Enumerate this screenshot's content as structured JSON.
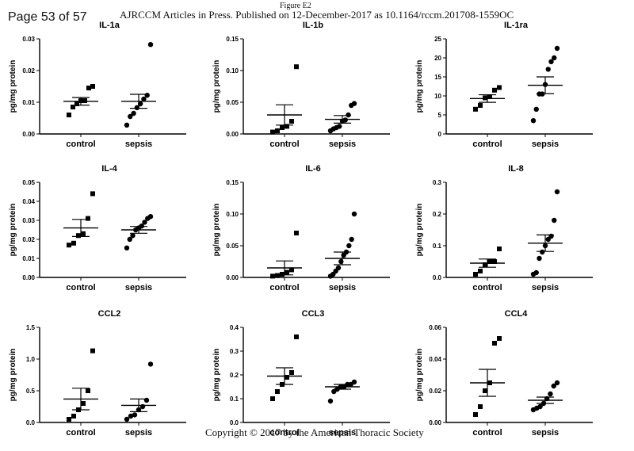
{
  "header": {
    "page": "Page 53 of 57",
    "journal": "AJRCCM Articles in Press. Published on 12-December-2017 as 10.1164/rccm.201708-1559OC",
    "figure": "Figure E2"
  },
  "footer": {
    "copyright": "Copyright © 2017 by the American Thoracic Society"
  },
  "chart_data": [
    {
      "type": "scatter",
      "title": "IL-1a",
      "ylabel": "pg/mg protein",
      "categories": [
        "control",
        "sepsis"
      ],
      "ylim": [
        0,
        0.03
      ],
      "yticks": [
        0,
        0.01,
        0.02,
        0.03
      ],
      "tick_labels": [
        "0.00",
        "0.01",
        "0.02",
        "0.03"
      ],
      "series": [
        {
          "values": [
            0.006,
            0.0085,
            0.0095,
            0.0105,
            0.0105,
            0.0145,
            0.015
          ],
          "mean": 0.0103,
          "sem": 0.0012
        },
        {
          "values": [
            0.0028,
            0.0055,
            0.0065,
            0.0083,
            0.0095,
            0.011,
            0.0122,
            0.0282
          ],
          "mean": 0.0103,
          "sem": 0.0022
        }
      ]
    },
    {
      "type": "scatter",
      "title": "IL-1b",
      "ylabel": "pg/mg protein",
      "categories": [
        "control",
        "sepsis"
      ],
      "ylim": [
        0,
        0.15
      ],
      "yticks": [
        0,
        0.05,
        0.1,
        0.15
      ],
      "tick_labels": [
        "0.00",
        "0.05",
        "0.10",
        "0.15"
      ],
      "series": [
        {
          "values": [
            0.003,
            0.005,
            0.01,
            0.012,
            0.02,
            0.106
          ],
          "mean": 0.03,
          "sem": 0.016
        },
        {
          "values": [
            0.005,
            0.008,
            0.01,
            0.012,
            0.02,
            0.022,
            0.03,
            0.045,
            0.048
          ],
          "mean": 0.023,
          "sem": 0.006
        }
      ]
    },
    {
      "type": "scatter",
      "title": "IL-1ra",
      "ylabel": "pg/mg protein",
      "categories": [
        "control",
        "sepsis"
      ],
      "ylim": [
        0,
        25
      ],
      "yticks": [
        0,
        5,
        10,
        15,
        20,
        25
      ],
      "tick_labels": [
        "0",
        "5",
        "10",
        "15",
        "20",
        "25"
      ],
      "series": [
        {
          "values": [
            6.5,
            7.5,
            9.5,
            9.8,
            11.5,
            12.2
          ],
          "mean": 9.3,
          "sem": 1.0
        },
        {
          "values": [
            3.5,
            6.5,
            10.5,
            10.5,
            13,
            17,
            19,
            20,
            22.5
          ],
          "mean": 12.8,
          "sem": 2.2
        }
      ]
    },
    {
      "type": "scatter",
      "title": "IL-4",
      "ylabel": "pg/mg protein",
      "categories": [
        "control",
        "sepsis"
      ],
      "ylim": [
        0,
        0.05
      ],
      "yticks": [
        0,
        0.01,
        0.02,
        0.03,
        0.04,
        0.05
      ],
      "tick_labels": [
        "0.00",
        "0.01",
        "0.02",
        "0.03",
        "0.04",
        "0.05"
      ],
      "series": [
        {
          "values": [
            0.017,
            0.018,
            0.022,
            0.023,
            0.031,
            0.044
          ],
          "mean": 0.026,
          "sem": 0.0045
        },
        {
          "values": [
            0.0155,
            0.02,
            0.022,
            0.025,
            0.026,
            0.027,
            0.029,
            0.031,
            0.032
          ],
          "mean": 0.025,
          "sem": 0.0018
        }
      ]
    },
    {
      "type": "scatter",
      "title": "IL-6",
      "ylabel": "pg/mg protein",
      "categories": [
        "control",
        "sepsis"
      ],
      "ylim": [
        0,
        0.15
      ],
      "yticks": [
        0,
        0.05,
        0.1,
        0.15
      ],
      "tick_labels": [
        "0.00",
        "0.05",
        "0.10",
        "0.15"
      ],
      "series": [
        {
          "values": [
            0.002,
            0.003,
            0.005,
            0.008,
            0.012,
            0.07
          ],
          "mean": 0.015,
          "sem": 0.011
        },
        {
          "values": [
            0.002,
            0.005,
            0.01,
            0.015,
            0.025,
            0.035,
            0.04,
            0.05,
            0.06,
            0.1
          ],
          "mean": 0.03,
          "sem": 0.01
        }
      ]
    },
    {
      "type": "scatter",
      "title": "IL-8",
      "ylabel": "pg/mg protein",
      "categories": [
        "control",
        "sepsis"
      ],
      "ylim": [
        0,
        0.3
      ],
      "yticks": [
        0,
        0.1,
        0.2,
        0.3
      ],
      "tick_labels": [
        "0.0",
        "0.1",
        "0.2",
        "0.3"
      ],
      "series": [
        {
          "values": [
            0.01,
            0.02,
            0.04,
            0.05,
            0.05,
            0.09
          ],
          "mean": 0.045,
          "sem": 0.013
        },
        {
          "values": [
            0.01,
            0.015,
            0.06,
            0.08,
            0.1,
            0.12,
            0.13,
            0.18,
            0.27
          ],
          "mean": 0.108,
          "sem": 0.026
        }
      ]
    },
    {
      "type": "scatter",
      "title": "CCL2",
      "ylabel": "pg/mg protein",
      "categories": [
        "control",
        "sepsis"
      ],
      "ylim": [
        0,
        1.5
      ],
      "yticks": [
        0,
        0.5,
        1,
        1.5
      ],
      "tick_labels": [
        "0.0",
        "0.5",
        "1.0",
        "1.5"
      ],
      "series": [
        {
          "values": [
            0.05,
            0.1,
            0.2,
            0.3,
            0.5,
            1.13
          ],
          "mean": 0.37,
          "sem": 0.17
        },
        {
          "values": [
            0.05,
            0.1,
            0.12,
            0.2,
            0.25,
            0.35,
            0.92
          ],
          "mean": 0.27,
          "sem": 0.1
        }
      ]
    },
    {
      "type": "scatter",
      "title": "CCL3",
      "ylabel": "pg/mg protein",
      "categories": [
        "control",
        "sepsis"
      ],
      "ylim": [
        0,
        0.4
      ],
      "yticks": [
        0,
        0.1,
        0.2,
        0.3,
        0.4
      ],
      "tick_labels": [
        "0.0",
        "0.1",
        "0.2",
        "0.3",
        "0.4"
      ],
      "series": [
        {
          "values": [
            0.1,
            0.13,
            0.16,
            0.19,
            0.21,
            0.36
          ],
          "mean": 0.195,
          "sem": 0.035
        },
        {
          "values": [
            0.09,
            0.13,
            0.14,
            0.15,
            0.15,
            0.16,
            0.16,
            0.17
          ],
          "mean": 0.15,
          "sem": 0.01
        }
      ]
    },
    {
      "type": "scatter",
      "title": "CCL4",
      "ylabel": "pg/mg protein",
      "categories": [
        "control",
        "sepsis"
      ],
      "ylim": [
        0,
        0.06
      ],
      "yticks": [
        0,
        0.02,
        0.04,
        0.06
      ],
      "tick_labels": [
        "0.00",
        "0.02",
        "0.04",
        "0.06"
      ],
      "series": [
        {
          "values": [
            0.005,
            0.01,
            0.02,
            0.025,
            0.05,
            0.053
          ],
          "mean": 0.025,
          "sem": 0.0085
        },
        {
          "values": [
            0.008,
            0.009,
            0.01,
            0.012,
            0.015,
            0.018,
            0.023,
            0.025
          ],
          "mean": 0.014,
          "sem": 0.002
        }
      ]
    }
  ]
}
